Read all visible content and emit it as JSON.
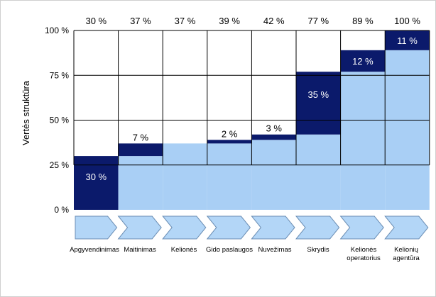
{
  "chart_data": {
    "type": "bar",
    "stacked_waterfall": true,
    "ylabel": "Vertės struktūra",
    "yticks": [
      "0 %",
      "25 %",
      "50 %",
      "75 %",
      "100 %"
    ],
    "ylim": [
      0,
      100
    ],
    "categories": [
      [
        "Apgyvendinimas"
      ],
      [
        "Maitinimas"
      ],
      [
        "Kelionės"
      ],
      [
        "Gido paslaugos"
      ],
      [
        "Nuvežimas"
      ],
      [
        "Skrydis"
      ],
      [
        "Kelionės",
        "operatorius"
      ],
      [
        "Kelionių",
        "agentūra"
      ]
    ],
    "cumulative_labels": [
      "30 %",
      "37 %",
      "37 %",
      "39 %",
      "42 %",
      "77 %",
      "89 %",
      "100 %"
    ],
    "cumulative": [
      30,
      37,
      37,
      39,
      42,
      77,
      89,
      100
    ],
    "increments": [
      30,
      7,
      0,
      2,
      3,
      35,
      12,
      11
    ],
    "increment_labels": [
      "30 %",
      "7 %",
      "",
      "2 %",
      "3 %",
      "35 %",
      "12 %",
      "11 %"
    ],
    "colors": {
      "increment": "#0b1a6b",
      "base": "#a9cff5",
      "empty": "#ffffff",
      "grid": "#000000",
      "arrow_fill": "#b3d6f7",
      "arrow_stroke": "#6c8fb5"
    }
  }
}
